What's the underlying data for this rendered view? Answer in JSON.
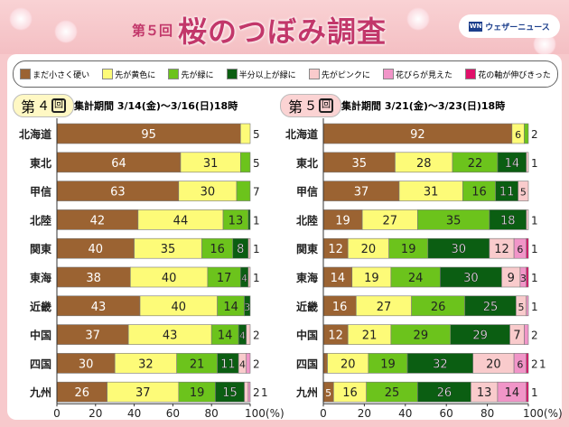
{
  "header": {
    "round": "第５回",
    "title": "桜のつぼみ調査",
    "brand": "ウェザーニュース",
    "brand_logo": "WN"
  },
  "legend": [
    {
      "label": "まだ小さく硬い",
      "color": "#9b6332"
    },
    {
      "label": "先が黄色に",
      "color": "#fdfb78"
    },
    {
      "label": "先が緑に",
      "color": "#6cc31c"
    },
    {
      "label": "半分以上が緑に",
      "color": "#0b5e12"
    },
    {
      "label": "先がピンクに",
      "color": "#f9cbcc"
    },
    {
      "label": "花びらが見えた",
      "color": "#f195c8"
    },
    {
      "label": "花の軸が伸びきった",
      "color": "#e0106a"
    }
  ],
  "chart_data": [
    {
      "type": "bar",
      "stacked": true,
      "orientation": "horizontal",
      "badge": {
        "prefix": "第",
        "num": "４",
        "suffix": "回",
        "color": "#fff8c4"
      },
      "title": "集計期間 3/14(金)〜3/16(日)18時",
      "categories": [
        "北海道",
        "東北",
        "甲信",
        "北陸",
        "関東",
        "東海",
        "近畿",
        "中国",
        "四国",
        "九州"
      ],
      "series": [
        {
          "name": "まだ小さく硬い",
          "values": [
            95,
            64,
            63,
            42,
            40,
            38,
            43,
            37,
            30,
            26
          ]
        },
        {
          "name": "先が黄色に",
          "values": [
            5,
            31,
            30,
            44,
            35,
            40,
            40,
            43,
            32,
            37
          ]
        },
        {
          "name": "先が緑に",
          "values": [
            0,
            5,
            7,
            13,
            16,
            17,
            14,
            14,
            21,
            19
          ]
        },
        {
          "name": "半分以上が緑に",
          "values": [
            0,
            0,
            0,
            1,
            8,
            4,
            3,
            4,
            11,
            15
          ]
        },
        {
          "name": "先がピンクに",
          "values": [
            0,
            0,
            0,
            0,
            1,
            1,
            0,
            2,
            4,
            2
          ]
        },
        {
          "name": "花びらが見えた",
          "values": [
            0,
            0,
            0,
            0,
            0,
            0,
            0,
            0,
            2,
            1
          ]
        },
        {
          "name": "花の軸が伸びきった",
          "values": [
            0,
            0,
            0,
            0,
            0,
            0,
            0,
            0,
            0,
            0
          ]
        }
      ],
      "xlim": [
        0,
        100
      ],
      "xticks": [
        "0",
        "20",
        "40",
        "60",
        "80",
        "100(%)"
      ]
    },
    {
      "type": "bar",
      "stacked": true,
      "orientation": "horizontal",
      "badge": {
        "prefix": "第",
        "num": "５",
        "suffix": "回",
        "color": "#fbd3d3"
      },
      "title": "集計期間 3/21(金)〜3/23(日)18時",
      "categories": [
        "北海道",
        "東北",
        "甲信",
        "北陸",
        "関東",
        "東海",
        "近畿",
        "中国",
        "四国",
        "九州"
      ],
      "series": [
        {
          "name": "まだ小さく硬い",
          "values": [
            92,
            35,
            37,
            19,
            12,
            14,
            16,
            12,
            2,
            5
          ]
        },
        {
          "name": "先が黄色に",
          "values": [
            6,
            28,
            31,
            27,
            20,
            19,
            27,
            21,
            20,
            16
          ]
        },
        {
          "name": "先が緑に",
          "values": [
            2,
            22,
            16,
            35,
            19,
            24,
            26,
            29,
            19,
            25
          ]
        },
        {
          "name": "半分以上が緑に",
          "values": [
            0,
            14,
            11,
            18,
            30,
            30,
            25,
            29,
            32,
            26
          ]
        },
        {
          "name": "先がピンクに",
          "values": [
            0,
            1,
            5,
            1,
            12,
            9,
            5,
            7,
            20,
            13
          ]
        },
        {
          "name": "花びらが見えた",
          "values": [
            0,
            0,
            0,
            0,
            6,
            3,
            1,
            2,
            6,
            14
          ]
        },
        {
          "name": "花の軸が伸びきった",
          "values": [
            0,
            0,
            0,
            0,
            1,
            1,
            0,
            0,
            1,
            1
          ]
        }
      ],
      "xlim": [
        0,
        100
      ],
      "xticks": [
        "0",
        "20",
        "40",
        "60",
        "80",
        "100(%)"
      ]
    }
  ]
}
